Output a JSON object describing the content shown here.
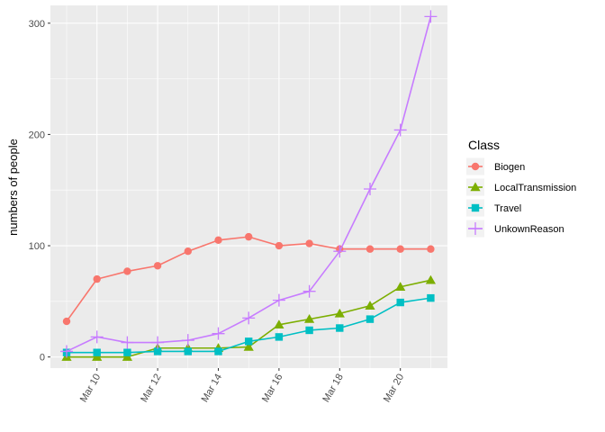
{
  "chart_data": {
    "type": "line",
    "title": "",
    "xlabel": "",
    "ylabel": "numbers of people",
    "x": [
      "Mar 9",
      "Mar 10",
      "Mar 11",
      "Mar 12",
      "Mar 13",
      "Mar 14",
      "Mar 15",
      "Mar 16",
      "Mar 17",
      "Mar 18",
      "Mar 19",
      "Mar 20",
      "Mar 21"
    ],
    "x_ticks": [
      "Mar 10",
      "Mar 12",
      "Mar 14",
      "Mar 16",
      "Mar 18",
      "Mar 20"
    ],
    "y_ticks": [
      0,
      100,
      200,
      300
    ],
    "ylim": [
      -10,
      316
    ],
    "grid": true,
    "legend": {
      "title": "Class",
      "placement": "right"
    },
    "series": [
      {
        "name": "Biogen",
        "color": "#F8766D",
        "marker": "circle",
        "values": [
          32,
          70,
          77,
          82,
          95,
          105,
          108,
          100,
          102,
          97,
          97,
          97,
          97
        ]
      },
      {
        "name": "LocalTransmission",
        "color": "#7CAE00",
        "marker": "triangle",
        "values": [
          0,
          0,
          0,
          8,
          8,
          8,
          9,
          29,
          34,
          39,
          46,
          63,
          69
        ]
      },
      {
        "name": "Travel",
        "color": "#00BFC4",
        "marker": "square",
        "values": [
          4,
          4,
          4,
          5,
          5,
          5,
          14,
          18,
          24,
          26,
          34,
          49,
          53
        ]
      },
      {
        "name": "UnkownReason",
        "color": "#C77CFF",
        "marker": "plus",
        "values": [
          5,
          18,
          13,
          13,
          15,
          21,
          35,
          51,
          59,
          95,
          151,
          204,
          306
        ]
      }
    ]
  }
}
